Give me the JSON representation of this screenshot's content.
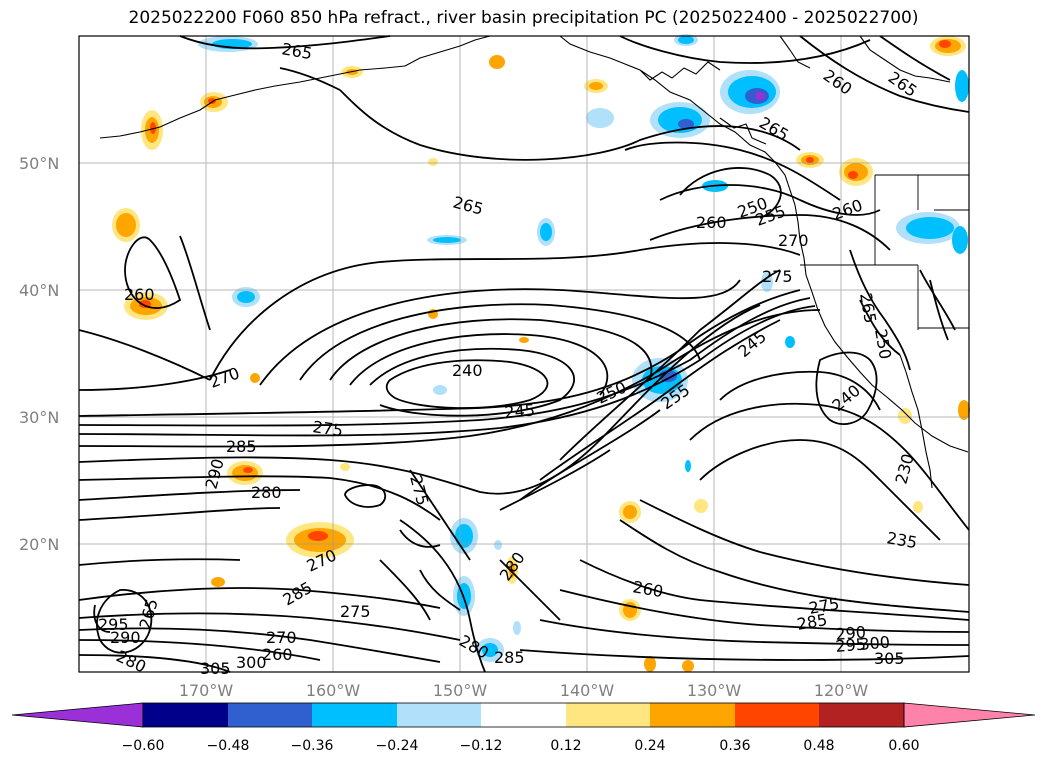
{
  "title": "2025022200 F060 850 hPa refract., river basin precipitation PC (2025022400 - 2025022700)",
  "lat_labels": [
    "50°N",
    "40°N",
    "30°N",
    "20°N"
  ],
  "lon_labels": [
    "170°W",
    "160°W",
    "150°W",
    "140°W",
    "130°W",
    "120°W"
  ],
  "contour_labels": [
    "265",
    "265",
    "260",
    "265",
    "265",
    "260",
    "270",
    "270",
    "260",
    "260",
    "255",
    "250",
    "275",
    "265",
    "250",
    "240",
    "240",
    "245",
    "250",
    "255",
    "245",
    "275",
    "285",
    "290",
    "280",
    "275",
    "230",
    "235",
    "270",
    "280",
    "285",
    "275",
    "270",
    "260",
    "275",
    "280",
    "285",
    "295",
    "290",
    "280",
    "265",
    "305",
    "300",
    "260",
    "285",
    "290",
    "295",
    "300",
    "305"
  ],
  "colorbar": {
    "ticks": [
      "−0.60",
      "−0.48",
      "−0.36",
      "−0.24",
      "−0.12",
      "0.12",
      "0.24",
      "0.36",
      "0.48",
      "0.60"
    ],
    "colors": [
      "#9b30d9",
      "#00008b",
      "#3060d0",
      "#00bfff",
      "#b0e0fa",
      "#ffffff",
      "#ffe680",
      "#ffa500",
      "#ff4500",
      "#b22222",
      "#ff82ab"
    ]
  }
}
